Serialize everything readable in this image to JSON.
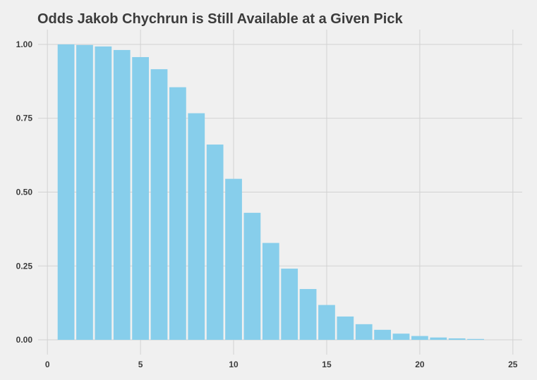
{
  "chart_data": {
    "type": "bar",
    "title": "Odds Jakob Chychrun is Still Available at a Given Pick",
    "xlabel": "",
    "ylabel": "",
    "x": [
      1,
      2,
      3,
      4,
      5,
      6,
      7,
      8,
      9,
      10,
      11,
      12,
      13,
      14,
      15,
      16,
      17,
      18,
      19,
      20,
      21,
      22,
      23
    ],
    "values": [
      1.0,
      0.998,
      0.993,
      0.981,
      0.957,
      0.916,
      0.855,
      0.767,
      0.661,
      0.545,
      0.43,
      0.328,
      0.241,
      0.172,
      0.118,
      0.079,
      0.053,
      0.034,
      0.021,
      0.013,
      0.008,
      0.005,
      0.003
    ],
    "xlim": [
      -0.5,
      25.5
    ],
    "ylim": [
      -0.05,
      1.05
    ],
    "x_ticks": [
      0,
      5,
      10,
      15,
      20,
      25
    ],
    "x_tick_labels": [
      "0",
      "5",
      "10",
      "15",
      "20",
      "25"
    ],
    "y_ticks": [
      0,
      0.25,
      0.5,
      0.75,
      1.0
    ],
    "y_tick_labels": [
      "0.00",
      "0.25",
      "0.50",
      "0.75",
      "1.00"
    ],
    "grid": true,
    "legend": "none",
    "colors": {
      "bar": "#87ceeb",
      "background": "#f0f0f0",
      "grid": "#d2d2d2",
      "text": "#3c3c3c"
    }
  }
}
